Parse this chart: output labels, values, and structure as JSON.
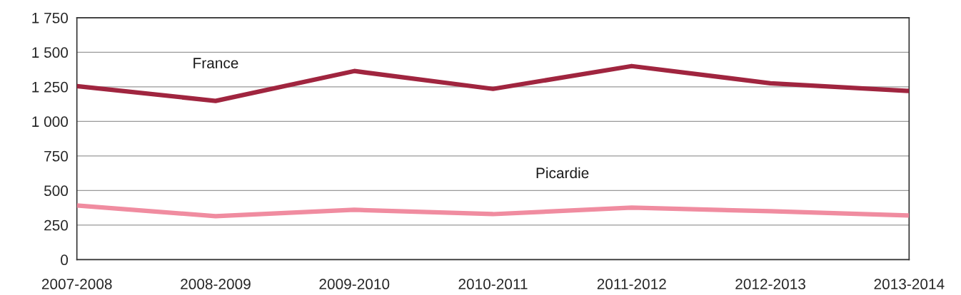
{
  "chart_data": {
    "type": "line",
    "categories": [
      "2007-2008",
      "2008-2009",
      "2009-2010",
      "2010-2011",
      "2011-2012",
      "2012-2013",
      "2013-2014"
    ],
    "series": [
      {
        "name": "France",
        "color": "#a0253f",
        "values": [
          1255,
          1148,
          1364,
          1235,
          1400,
          1276,
          1220
        ]
      },
      {
        "name": "Picardie",
        "color": "#f08ca0",
        "values": [
          391,
          314,
          360,
          329,
          376,
          350,
          319
        ]
      }
    ],
    "ylim": [
      0,
      1750
    ],
    "yticks": [
      0,
      250,
      500,
      750,
      {
        "value": 1000,
        "label": "1 000"
      },
      {
        "value": 1250,
        "label": "1 250"
      },
      {
        "value": 1500,
        "label": "1 500"
      },
      {
        "value": 1750,
        "label": "1 750"
      }
    ],
    "grid": "y",
    "legend": false,
    "marker": "none",
    "line_style": "solid"
  }
}
